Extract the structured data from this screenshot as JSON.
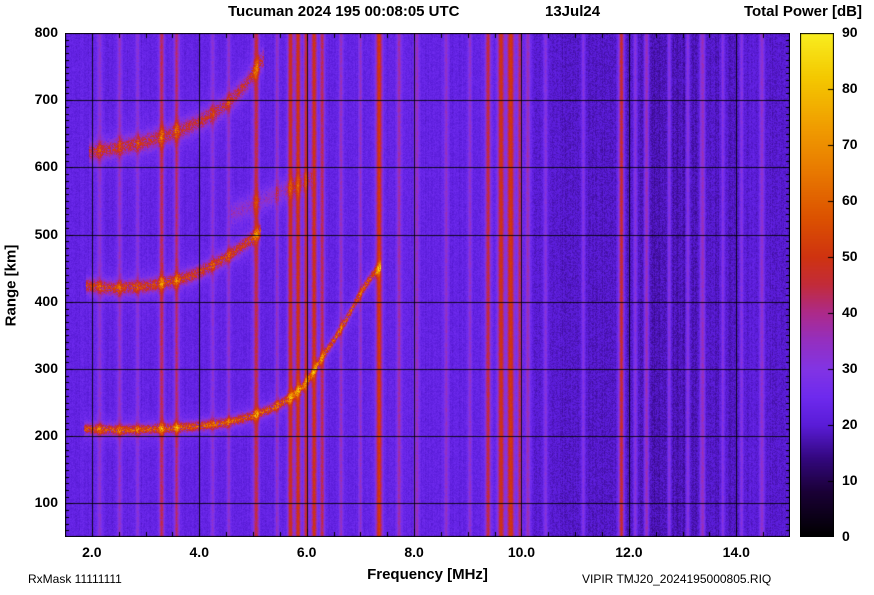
{
  "header": {
    "title": "Tucuman 2024 195 00:08:05 UTC",
    "date": "13Jul24",
    "colorbar_title": "Total Power [dB]"
  },
  "footer": {
    "rx_mask": "RxMask 11111111",
    "file_label": "VIPIR  TMJ20_2024195000805.RIQ"
  },
  "chart_data": {
    "type": "heatmap",
    "title": "Tucuman 2024 195 00:08:05 UTC",
    "date_label": "13Jul24",
    "xlabel": "Frequency [MHz]",
    "ylabel": "Range [km]",
    "colorbar_label": "Total Power [dB]",
    "x_range_mhz": [
      1.5,
      15.0
    ],
    "y_range_km": [
      50,
      800
    ],
    "x_ticks_mhz": [
      2.0,
      4.0,
      6.0,
      8.0,
      10.0,
      12.0,
      14.0
    ],
    "x_minor_step_mhz": 0.5,
    "y_ticks_km": [
      100,
      200,
      300,
      400,
      500,
      600,
      700,
      800
    ],
    "y_minor_step_km": 10,
    "colorbar_range_db": [
      0,
      90
    ],
    "colorbar_ticks_db": [
      0,
      10,
      20,
      30,
      40,
      50,
      60,
      70,
      80,
      90
    ],
    "background_db": 22.5,
    "noise_db": 5,
    "grid": true,
    "colormap_stops": [
      [
        0,
        "#000000"
      ],
      [
        8,
        "#1a0036"
      ],
      [
        14,
        "#33077e"
      ],
      [
        20,
        "#5a1cd8"
      ],
      [
        25,
        "#6e2aee"
      ],
      [
        30,
        "#8234e4"
      ],
      [
        35,
        "#942fc0"
      ],
      [
        40,
        "#ad2a8a"
      ],
      [
        45,
        "#c22b3a"
      ],
      [
        50,
        "#cf3310"
      ],
      [
        57,
        "#dc5200"
      ],
      [
        65,
        "#e87800"
      ],
      [
        73,
        "#f09c00"
      ],
      [
        82,
        "#f4c800"
      ],
      [
        90,
        "#f8ee20"
      ]
    ],
    "rfi_stripes": [
      {
        "freq": 2.15,
        "width": 0.05,
        "db": 33
      },
      {
        "freq": 2.52,
        "width": 0.05,
        "db": 34
      },
      {
        "freq": 2.85,
        "width": 0.04,
        "db": 32
      },
      {
        "freq": 3.3,
        "width": 0.05,
        "db": 44
      },
      {
        "freq": 3.58,
        "width": 0.05,
        "db": 42
      },
      {
        "freq": 4.25,
        "width": 0.04,
        "db": 33
      },
      {
        "freq": 4.55,
        "width": 0.04,
        "db": 34
      },
      {
        "freq": 5.06,
        "width": 0.06,
        "db": 45
      },
      {
        "freq": 5.45,
        "width": 0.04,
        "db": 35
      },
      {
        "freq": 5.7,
        "width": 0.06,
        "db": 49
      },
      {
        "freq": 5.84,
        "width": 0.06,
        "db": 50
      },
      {
        "freq": 5.99,
        "width": 0.05,
        "db": 47
      },
      {
        "freq": 6.14,
        "width": 0.06,
        "db": 50
      },
      {
        "freq": 6.29,
        "width": 0.05,
        "db": 44
      },
      {
        "freq": 6.64,
        "width": 0.04,
        "db": 36
      },
      {
        "freq": 7.0,
        "width": 0.04,
        "db": 34
      },
      {
        "freq": 7.35,
        "width": 0.07,
        "db": 51
      },
      {
        "freq": 7.72,
        "width": 0.05,
        "db": 38
      },
      {
        "freq": 8.05,
        "width": 0.05,
        "db": 35
      },
      {
        "freq": 8.6,
        "width": 0.05,
        "db": 33
      },
      {
        "freq": 9.04,
        "width": 0.04,
        "db": 33
      },
      {
        "freq": 9.38,
        "width": 0.06,
        "db": 45
      },
      {
        "freq": 9.62,
        "width": 0.07,
        "db": 50
      },
      {
        "freq": 9.8,
        "width": 0.08,
        "db": 51
      },
      {
        "freq": 9.97,
        "width": 0.05,
        "db": 44
      },
      {
        "freq": 10.12,
        "width": 0.05,
        "db": 38
      },
      {
        "freq": 10.45,
        "width": 0.04,
        "db": 33
      },
      {
        "freq": 11.15,
        "width": 0.04,
        "db": 33
      },
      {
        "freq": 11.86,
        "width": 0.06,
        "db": 50
      },
      {
        "freq": 12.12,
        "width": 0.04,
        "db": 36
      },
      {
        "freq": 12.33,
        "width": 0.05,
        "db": 42
      },
      {
        "freq": 12.75,
        "width": 0.04,
        "db": 36
      },
      {
        "freq": 13.1,
        "width": 0.04,
        "db": 35
      },
      {
        "freq": 13.37,
        "width": 0.05,
        "db": 40
      },
      {
        "freq": 13.75,
        "width": 0.04,
        "db": 34
      },
      {
        "freq": 14.1,
        "width": 0.04,
        "db": 33
      },
      {
        "freq": 14.48,
        "width": 0.05,
        "db": 36
      }
    ],
    "dark_bands": [
      {
        "freq": 10.9,
        "width": 1.2,
        "db_delta": -3
      },
      {
        "freq": 12.7,
        "width": 1.6,
        "db_delta": -5
      },
      {
        "freq": 14.0,
        "width": 0.6,
        "db_delta": -2
      },
      {
        "freq": 14.75,
        "width": 0.4,
        "db_delta": -3
      }
    ],
    "traces": [
      {
        "name": "F-layer-1st-hop",
        "db": 52,
        "thickness_km": 10,
        "points": [
          [
            1.85,
            211
          ],
          [
            2.5,
            209
          ],
          [
            3.0,
            210
          ],
          [
            3.5,
            212
          ],
          [
            4.0,
            215
          ],
          [
            4.5,
            220
          ],
          [
            5.0,
            230
          ],
          [
            5.4,
            243
          ],
          [
            5.7,
            257
          ],
          [
            5.95,
            275
          ],
          [
            6.1,
            292
          ],
          [
            6.25,
            312
          ],
          [
            6.5,
            342
          ],
          [
            6.75,
            375
          ],
          [
            6.95,
            405
          ],
          [
            7.1,
            425
          ],
          [
            7.25,
            442
          ],
          [
            7.38,
            452
          ]
        ]
      },
      {
        "name": "F-layer-2nd-hop",
        "db": 47,
        "thickness_km": 14,
        "points": [
          [
            1.9,
            424
          ],
          [
            2.4,
            420
          ],
          [
            3.0,
            423
          ],
          [
            3.5,
            430
          ],
          [
            3.9,
            440
          ],
          [
            4.2,
            452
          ],
          [
            4.5,
            466
          ],
          [
            4.75,
            480
          ],
          [
            5.0,
            495
          ],
          [
            5.15,
            505
          ]
        ]
      },
      {
        "name": "F-layer-3rd-hop",
        "db": 43,
        "thickness_km": 18,
        "points": [
          [
            1.95,
            622
          ],
          [
            2.4,
            628
          ],
          [
            2.9,
            636
          ],
          [
            3.3,
            645
          ],
          [
            3.7,
            657
          ],
          [
            4.0,
            668
          ],
          [
            4.3,
            682
          ],
          [
            4.6,
            700
          ],
          [
            4.85,
            722
          ],
          [
            5.05,
            745
          ],
          [
            5.2,
            762
          ]
        ]
      },
      {
        "name": "diffuse-echo",
        "db": 32,
        "thickness_km": 22,
        "points": [
          [
            4.6,
            530
          ],
          [
            5.2,
            552
          ],
          [
            5.8,
            572
          ],
          [
            6.1,
            585
          ]
        ]
      }
    ]
  }
}
